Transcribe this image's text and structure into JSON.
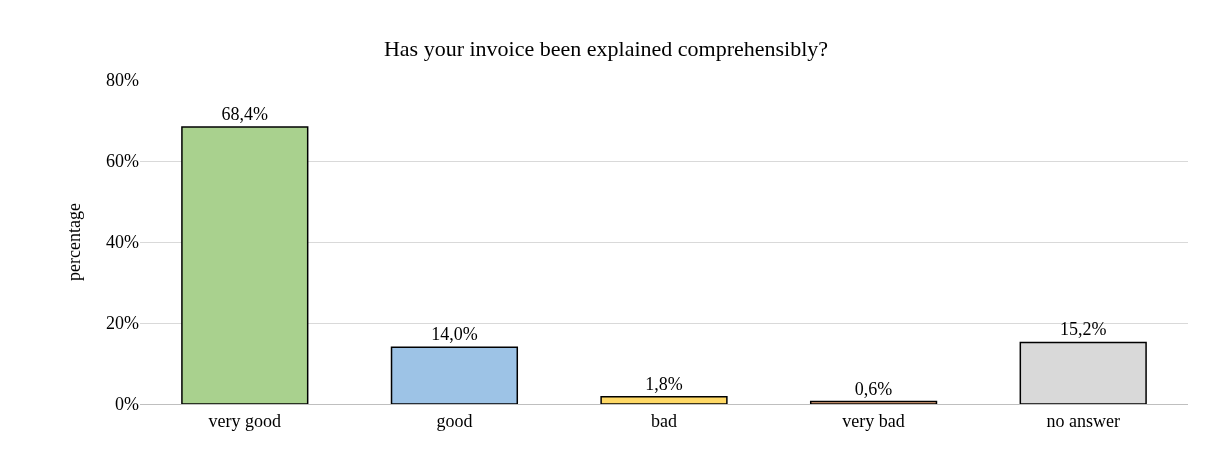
{
  "chart_data": {
    "type": "bar",
    "title": "Has your invoice been explained comprehensibly?",
    "ylabel": "percentage",
    "categories": [
      "very good",
      "good",
      "bad",
      "very bad",
      "no answer"
    ],
    "values": [
      68.4,
      14.0,
      1.8,
      0.6,
      15.2
    ],
    "colors": [
      "#a9d18e",
      "#9dc3e6",
      "#ffd966",
      "#f4b183",
      "#d9d9d9"
    ],
    "value_labels": [
      "68,4%",
      "14,0%",
      "1,8%",
      "0,6%",
      "15,2%"
    ],
    "ylim": [
      0,
      80
    ],
    "yticks": [
      {
        "value": 0,
        "label": "0%"
      },
      {
        "value": 20,
        "label": "20%"
      },
      {
        "value": 40,
        "label": "40%"
      },
      {
        "value": 60,
        "label": "60%"
      },
      {
        "value": 80,
        "label": "80%"
      }
    ],
    "grid": "y",
    "legend": false
  }
}
